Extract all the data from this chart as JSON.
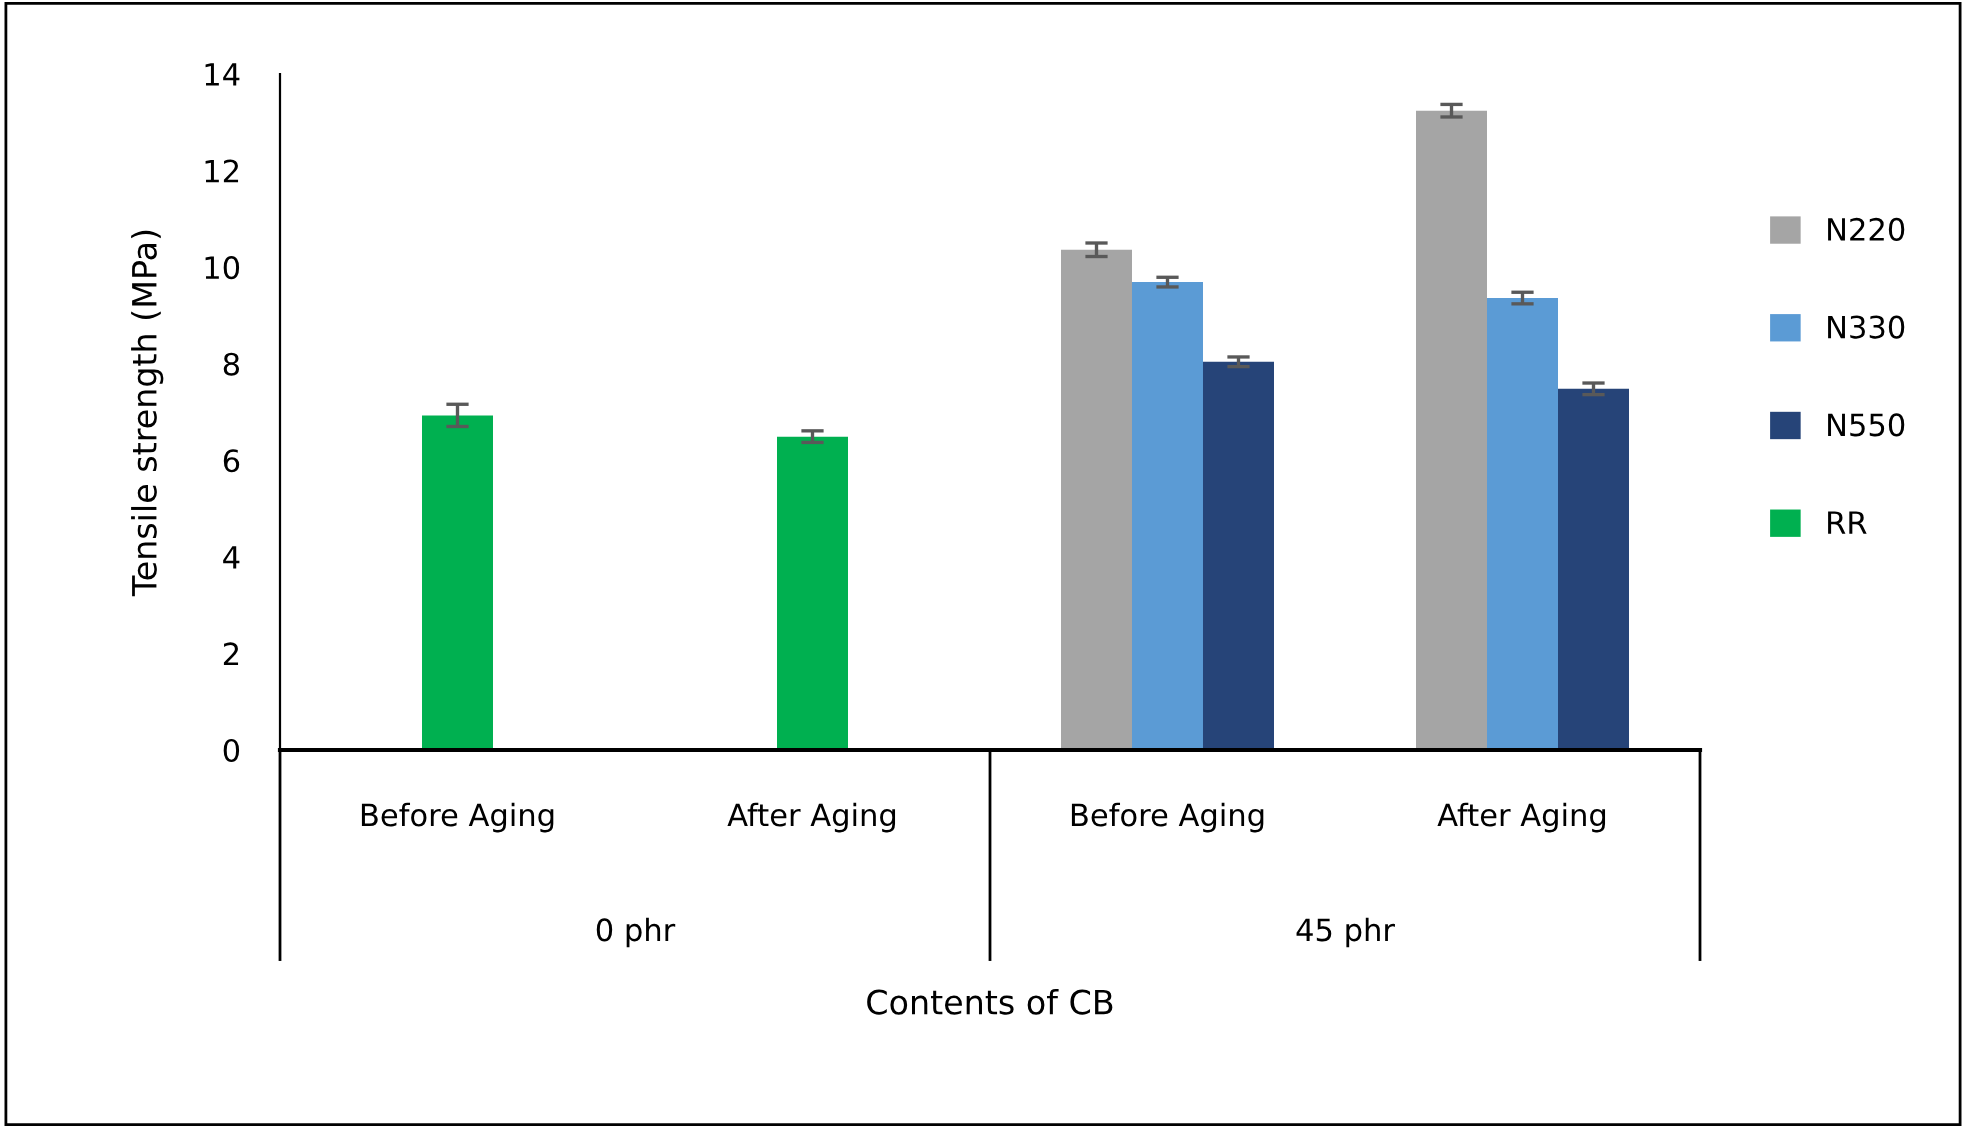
{
  "chart_data": {
    "type": "bar",
    "xlabel": "Contents of CB",
    "ylabel": "Tensile strength (MPa)",
    "categories": [
      "Before Aging",
      "After Aging",
      "Before Aging",
      "After Aging"
    ],
    "series": [
      {
        "name": "N220",
        "color": "#a5a5a5",
        "values": [
          null,
          null,
          10.36,
          13.24
        ],
        "errors": [
          null,
          null,
          0.14,
          0.13
        ]
      },
      {
        "name": "N330",
        "color": "#5b9bd5",
        "values": [
          null,
          null,
          9.69,
          9.36
        ],
        "errors": [
          null,
          null,
          0.1,
          0.12
        ]
      },
      {
        "name": "N550",
        "color": "#264478",
        "values": [
          null,
          null,
          8.04,
          7.48
        ],
        "errors": [
          null,
          null,
          0.1,
          0.12
        ]
      },
      {
        "name": "RR",
        "color": "#00b050",
        "values": [
          6.93,
          6.49,
          null,
          null
        ],
        "errors": [
          0.23,
          0.12,
          null,
          null
        ]
      }
    ],
    "ylim": [
      0,
      14
    ],
    "yticks": [
      0,
      2,
      4,
      6,
      8,
      10,
      12,
      14
    ],
    "grid": false,
    "legend": "right",
    "annotations": [
      "0 phr",
      "45 phr"
    ]
  }
}
